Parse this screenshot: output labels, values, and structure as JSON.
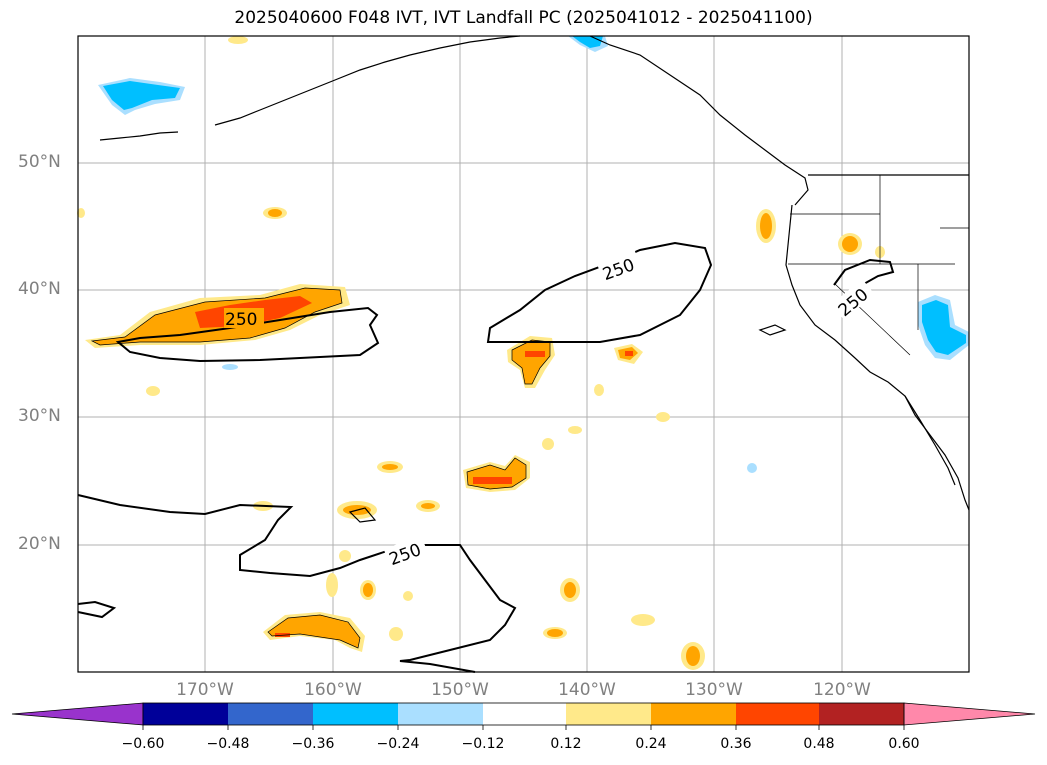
{
  "title": "2025040600 F048 IVT, IVT Landfall PC (2025041012 - 2025041100)",
  "lat_labels": [
    "50°N",
    "40°N",
    "30°N",
    "20°N"
  ],
  "lon_labels": [
    "170°W",
    "160°W",
    "150°W",
    "140°W",
    "130°W",
    "120°W"
  ],
  "contour_labels": [
    "250",
    "250",
    "250",
    "250"
  ],
  "colorbar": {
    "ticks": [
      "−0.60",
      "−0.48",
      "−0.36",
      "−0.24",
      "−0.12",
      "0.12",
      "0.24",
      "0.36",
      "0.48",
      "0.60"
    ],
    "colors": [
      "#9933cc",
      "#000099",
      "#3366cc",
      "#00bfff",
      "#aadfff",
      "#ffffff",
      "#ffe98a",
      "#ffa500",
      "#ff4500",
      "#b22222",
      "#ff88aa"
    ]
  },
  "colors": {
    "land_outline": "#000000",
    "gridline": "#b0b0b0",
    "positive_1": "#ffe98a",
    "positive_2": "#ffa500",
    "positive_3": "#ff4500",
    "negative_1": "#aadfff",
    "negative_2": "#00bfff"
  }
}
